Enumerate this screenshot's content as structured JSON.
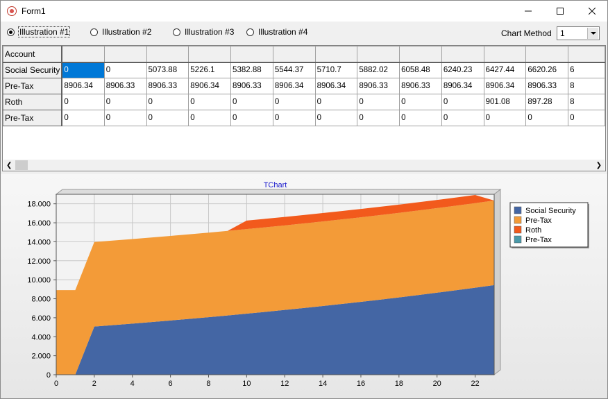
{
  "window": {
    "title": "Form1"
  },
  "icons": {
    "app": "app-icon",
    "minimize": "minimize-icon",
    "maximize": "maximize-icon",
    "close": "close-icon",
    "scroll_left": "chevron-left-icon",
    "scroll_right": "chevron-right-icon",
    "dropdown": "chevron-down-icon"
  },
  "toolbar": {
    "radios": [
      {
        "label": "Illustration #1",
        "checked": true
      },
      {
        "label": "Illustration #2",
        "checked": false
      },
      {
        "label": "Illustration #3",
        "checked": false
      },
      {
        "label": "Illustration #4",
        "checked": false
      }
    ],
    "chart_method_label": "Chart Method",
    "chart_method_value": "1"
  },
  "grid": {
    "header": "Account",
    "rows": [
      {
        "label": "Social Security",
        "cells": [
          "0",
          "0",
          "5073.88",
          "5226.1",
          "5382.88",
          "5544.37",
          "5710.7",
          "5882.02",
          "6058.48",
          "6240.23",
          "6427.44",
          "6620.26",
          "6"
        ]
      },
      {
        "label": "Pre-Tax",
        "cells": [
          "8906.34",
          "8906.33",
          "8906.33",
          "8906.34",
          "8906.33",
          "8906.34",
          "8906.34",
          "8906.33",
          "8906.33",
          "8906.34",
          "8906.34",
          "8906.33",
          "8"
        ]
      },
      {
        "label": "Roth",
        "cells": [
          "0",
          "0",
          "0",
          "0",
          "0",
          "0",
          "0",
          "0",
          "0",
          "0",
          "901.08",
          "897.28",
          "8"
        ]
      },
      {
        "label": "Pre-Tax",
        "cells": [
          "0",
          "0",
          "0",
          "0",
          "0",
          "0",
          "0",
          "0",
          "0",
          "0",
          "0",
          "0",
          "0"
        ]
      }
    ]
  },
  "chart_data": {
    "type": "area",
    "stacked": true,
    "title": "TChart",
    "xlim": [
      0,
      23
    ],
    "ylim": [
      0,
      19000
    ],
    "x_ticks": [
      0,
      2,
      4,
      6,
      8,
      10,
      12,
      14,
      16,
      18,
      20,
      22
    ],
    "y_ticks": [
      0,
      2000,
      4000,
      6000,
      8000,
      10000,
      12000,
      14000,
      16000,
      18000
    ],
    "y_tick_labels": [
      "0",
      "2.000",
      "4.000",
      "6.000",
      "8.000",
      "10.000",
      "12.000",
      "14.000",
      "16.000",
      "18.000"
    ],
    "grid": true,
    "legend_position": "right",
    "x": [
      0,
      1,
      2,
      3,
      4,
      5,
      6,
      7,
      8,
      9,
      10,
      11,
      12,
      13,
      14,
      15,
      16,
      17,
      18,
      19,
      20,
      21,
      22,
      23
    ],
    "series": [
      {
        "name": "Social Security",
        "color": "#4466a4",
        "values": [
          0,
          0,
          5074,
          5226,
          5383,
          5544,
          5711,
          5882,
          6058,
          6240,
          6427,
          6620,
          6819,
          7024,
          7234,
          7451,
          7675,
          7905,
          8142,
          8387,
          8638,
          8897,
          9164,
          9439
        ]
      },
      {
        "name": "Pre-Tax",
        "color": "#f39b38",
        "values": [
          8906,
          8906,
          8906,
          8906,
          8906,
          8906,
          8906,
          8906,
          8906,
          8906,
          8906,
          8906,
          8906,
          8906,
          8906,
          8906,
          8906,
          8906,
          8906,
          8906,
          8906,
          8906,
          8906,
          8906
        ]
      },
      {
        "name": "Roth",
        "color": "#f25a1c",
        "values": [
          0,
          0,
          0,
          0,
          0,
          0,
          0,
          0,
          0,
          0,
          901,
          897,
          893,
          889,
          885,
          881,
          877,
          873,
          869,
          865,
          861,
          857,
          853,
          0
        ]
      },
      {
        "name": "Pre-Tax",
        "color": "#4a9aaa",
        "values": [
          0,
          0,
          0,
          0,
          0,
          0,
          0,
          0,
          0,
          0,
          0,
          0,
          0,
          0,
          0,
          0,
          0,
          0,
          0,
          0,
          0,
          0,
          0,
          0
        ]
      }
    ]
  }
}
